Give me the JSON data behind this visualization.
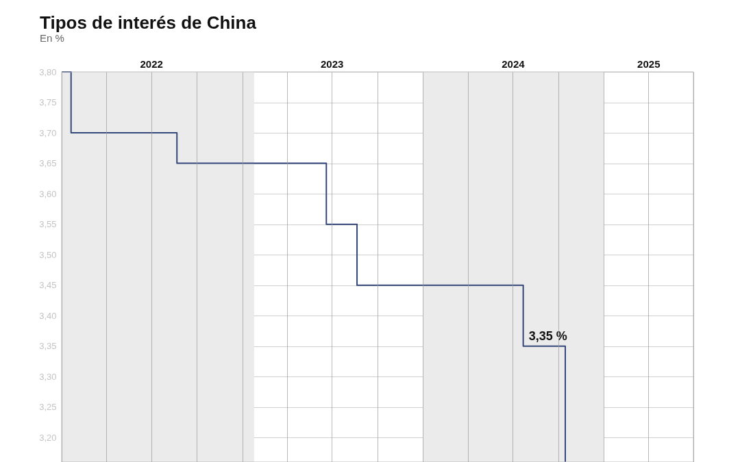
{
  "chart_data": {
    "type": "step",
    "title": "Tipos de interés de China",
    "subtitle": "En %",
    "x": [
      "2022-01-01",
      "2022-01-20",
      "2022-08-22",
      "2023-06-20",
      "2023-08-21",
      "2024-07-22",
      "2024-10-15"
    ],
    "series": [
      {
        "color": "#34477a",
        "values": [
          3.8,
          3.7,
          3.65,
          3.55,
          3.45,
          3.35,
          3.16
        ]
      }
    ],
    "xlim": [
      "2022-01-01",
      "2025-07-01"
    ],
    "xticks": [
      {
        "value": "2022-01-01",
        "label": null
      },
      {
        "value": "2022-04-01",
        "label": null
      },
      {
        "value": "2022-07-01",
        "label": "2022"
      },
      {
        "value": "2022-10-01",
        "label": null
      },
      {
        "value": "2023-01-01",
        "label": null
      },
      {
        "value": "2023-04-01",
        "label": null
      },
      {
        "value": "2023-07-01",
        "label": "2023"
      },
      {
        "value": "2023-10-01",
        "label": null
      },
      {
        "value": "2024-01-01",
        "label": null
      },
      {
        "value": "2024-04-01",
        "label": null
      },
      {
        "value": "2024-07-01",
        "label": "2024"
      },
      {
        "value": "2024-10-01",
        "label": null
      },
      {
        "value": "2025-01-01",
        "label": null
      },
      {
        "value": "2025-04-01",
        "label": "2025"
      },
      {
        "value": "2025-07-01",
        "label": null
      }
    ],
    "ylim": [
      3.16,
      3.8
    ],
    "yticks": [
      {
        "value": 3.2,
        "label": "3,20"
      },
      {
        "value": 3.25,
        "label": "3,25"
      },
      {
        "value": 3.3,
        "label": "3,30"
      },
      {
        "value": 3.35,
        "label": "3,35"
      },
      {
        "value": 3.4,
        "label": "3,40"
      },
      {
        "value": 3.45,
        "label": "3,45"
      },
      {
        "value": 3.5,
        "label": "3,50"
      },
      {
        "value": 3.55,
        "label": "3,55"
      },
      {
        "value": 3.6,
        "label": "3,60"
      },
      {
        "value": 3.65,
        "label": "3,65"
      },
      {
        "value": 3.7,
        "label": "3,70"
      },
      {
        "value": 3.75,
        "label": "3,75"
      },
      {
        "value": 3.8,
        "label": "3,80"
      }
    ],
    "bands": [
      {
        "axis": "x",
        "from": "2022-01-01",
        "to": "2023-01-25",
        "color": "#ebebeb"
      },
      {
        "axis": "x",
        "from": "2024-01-01",
        "to": "2025-01-01",
        "color": "#ebebeb"
      }
    ],
    "annotations": [
      {
        "text": "3,35 %",
        "x": "2024-09-10",
        "y": 3.35
      }
    ],
    "grid": true
  }
}
